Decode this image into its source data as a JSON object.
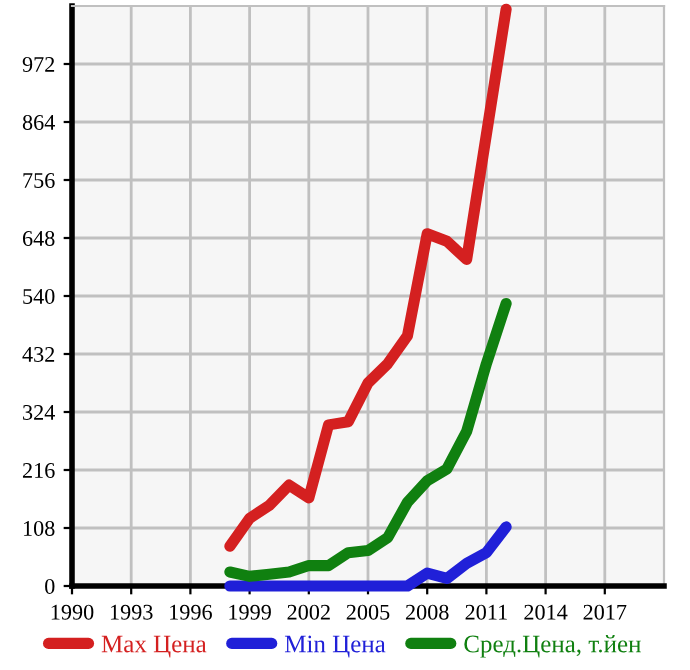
{
  "chart_data": {
    "type": "line",
    "x": [
      1998,
      1999,
      2000,
      2001,
      2002,
      2003,
      2004,
      2005,
      2006,
      2007,
      2008,
      2009,
      2010,
      2011,
      2012
    ],
    "series": [
      {
        "name": "Max Цена",
        "color": "#d42020",
        "values": [
          74,
          126,
          150,
          188,
          164,
          300,
          306,
          378,
          414,
          466,
          656,
          642,
          608,
          841,
          1074
        ]
      },
      {
        "name": "Min Цена",
        "color": "#2020d8",
        "values": [
          0,
          0,
          0,
          0,
          0,
          0,
          0,
          0,
          0,
          0,
          24,
          14,
          42,
          62,
          110
        ]
      },
      {
        "name": "Сред.Цена, т.йен",
        "color": "#108010",
        "values": [
          26,
          18,
          22,
          26,
          38,
          38,
          62,
          66,
          90,
          156,
          196,
          218,
          288,
          414,
          526
        ]
      }
    ],
    "xlim": [
      1990,
      2020
    ],
    "xticks": [
      1990,
      1993,
      1996,
      1999,
      2002,
      2005,
      2008,
      2011,
      2014,
      2017
    ],
    "ylim": [
      0,
      1080
    ],
    "yticks": [
      0,
      108,
      216,
      324,
      432,
      540,
      648,
      756,
      864,
      972
    ],
    "grid": true,
    "legend": "bottom",
    "marker": "none",
    "line_style": "solid"
  }
}
